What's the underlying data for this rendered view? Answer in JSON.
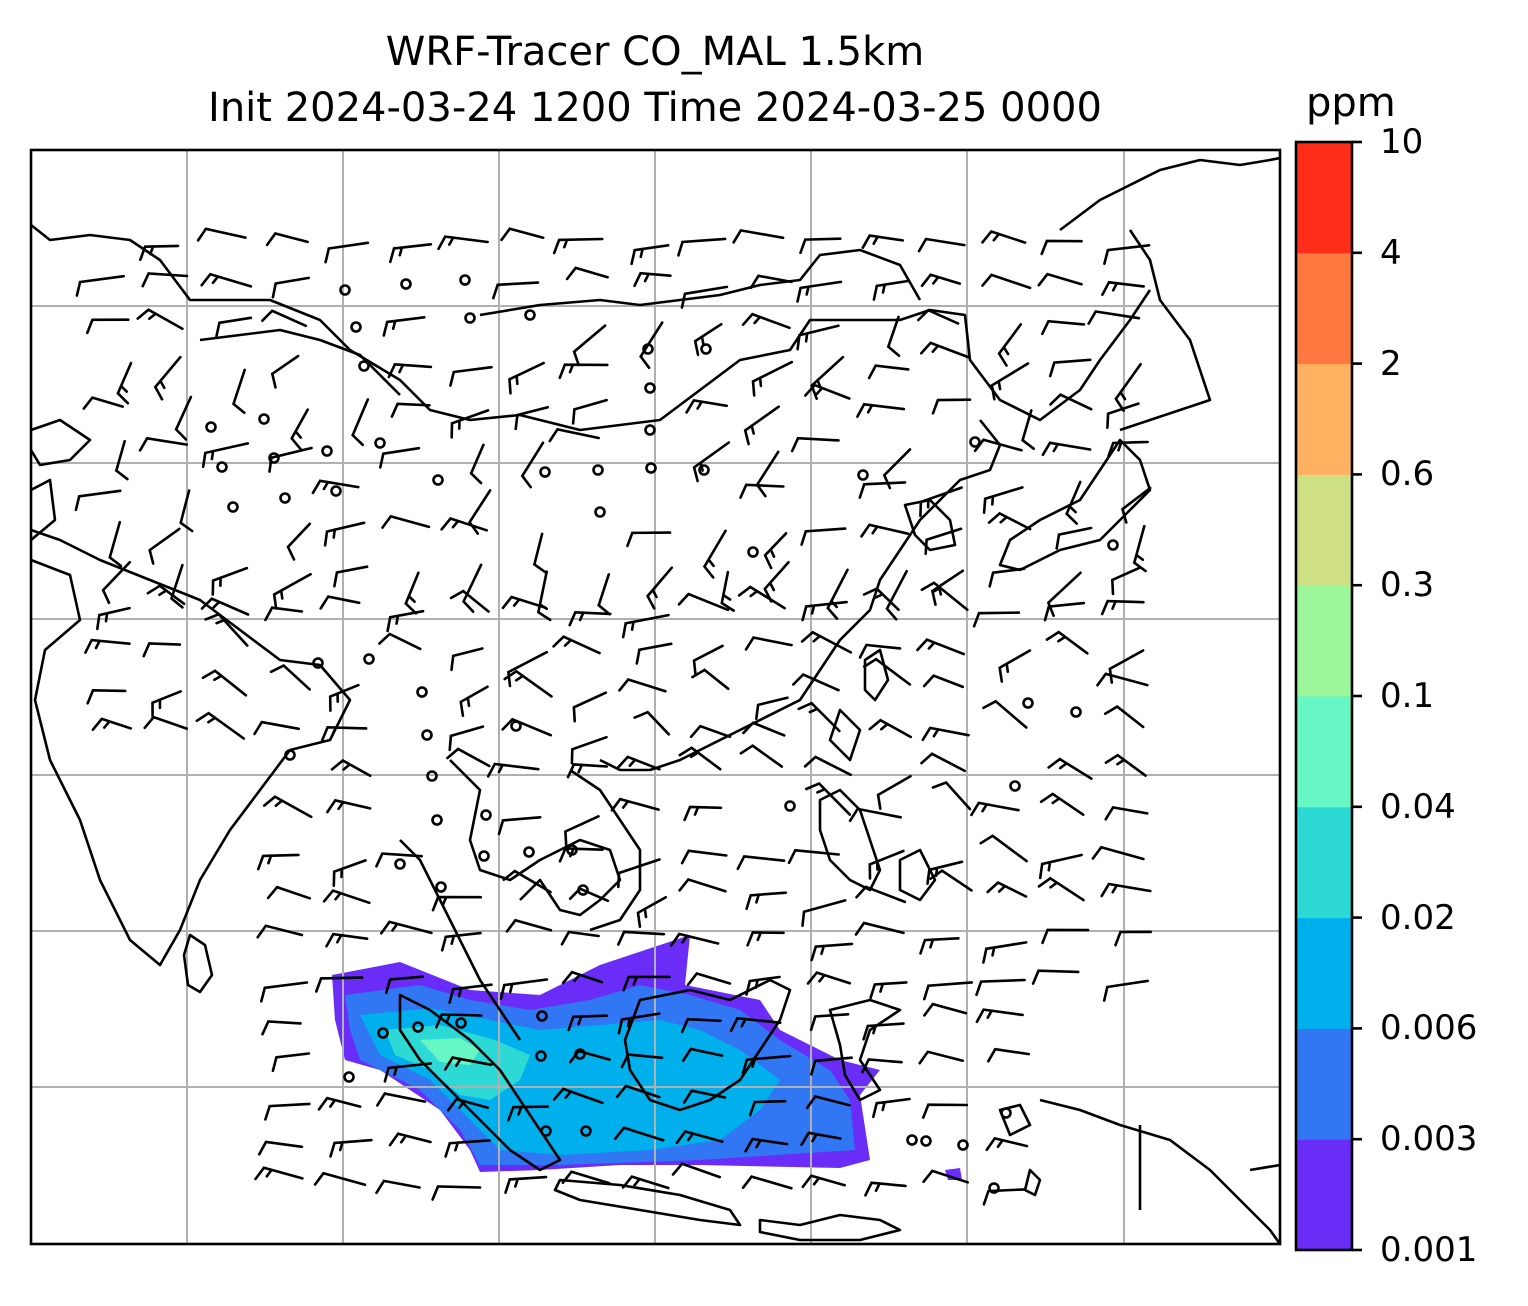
{
  "title_line1": "WRF-Tracer CO_MAL 1.5km",
  "title_line2": "Init 2024-03-24 1200 Time 2024-03-25 0000",
  "colorbar": {
    "unit": "ppm",
    "levels": [
      "0.001",
      "0.003",
      "0.006",
      "0.02",
      "0.04",
      "0.1",
      "0.3",
      "0.6",
      "2",
      "4",
      "10"
    ],
    "colors": [
      "#6a2cf7",
      "#3176f2",
      "#00b0ec",
      "#2dd9d4",
      "#66f7c4",
      "#9cf79a",
      "#cee083",
      "#ffb060",
      "#ff7840",
      "#ff2d1a"
    ]
  },
  "map": {
    "gridlines": true,
    "coastline_color": "#000000",
    "gridline_color": "#b0b0b0",
    "tracer_plume_region": "Java Sea / Sumatra / Borneo south",
    "wind_barbs": true
  }
}
